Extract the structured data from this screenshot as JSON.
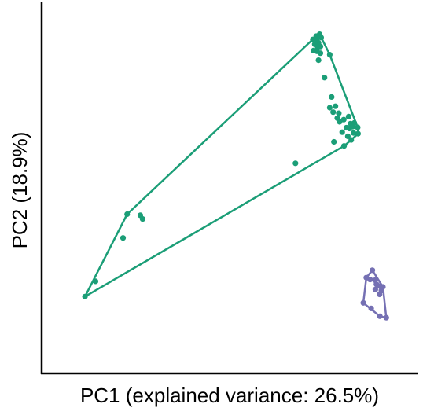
{
  "chart_data": {
    "type": "scatter",
    "title": "",
    "xlabel": "PC1 (explained variance: 26.5%)",
    "ylabel": "PC2 (18.9%)",
    "xlim": [
      0,
      100
    ],
    "ylim": [
      0,
      100
    ],
    "grid": false,
    "legend": "none",
    "axis_ticks": false,
    "series": [
      {
        "color": "#1b9e77",
        "hull": true,
        "points": [
          [
            72.0,
            90.0
          ],
          [
            72.9,
            90.9
          ],
          [
            73.1,
            90.2
          ],
          [
            73.8,
            91.4
          ],
          [
            74.2,
            90.5
          ],
          [
            72.9,
            88.9
          ],
          [
            73.5,
            89.1
          ],
          [
            74.0,
            88.1
          ],
          [
            72.5,
            88.7
          ],
          [
            73.3,
            87.9
          ],
          [
            73.1,
            86.8
          ],
          [
            72.2,
            87.0
          ],
          [
            74.0,
            86.3
          ],
          [
            76.5,
            85.9
          ],
          [
            73.5,
            84.4
          ],
          [
            75.1,
            79.7
          ],
          [
            77.0,
            74.5
          ],
          [
            78.0,
            72.0
          ],
          [
            78.9,
            70.1
          ],
          [
            76.5,
            71.6
          ],
          [
            77.4,
            70.4
          ],
          [
            78.5,
            68.8
          ],
          [
            79.1,
            67.8
          ],
          [
            80.2,
            68.4
          ],
          [
            81.5,
            69.2
          ],
          [
            82.0,
            67.3
          ],
          [
            80.9,
            66.2
          ],
          [
            81.7,
            66.0
          ],
          [
            84.0,
            64.6
          ],
          [
            83.0,
            67.5
          ],
          [
            82.6,
            66.5
          ],
          [
            83.9,
            66.3
          ],
          [
            82.8,
            64.8
          ],
          [
            81.3,
            63.9
          ],
          [
            79.8,
            65.0
          ],
          [
            77.6,
            62.4
          ],
          [
            82.2,
            62.9
          ],
          [
            80.3,
            61.3
          ],
          [
            67.4,
            56.6
          ],
          [
            22.7,
            42.9
          ],
          [
            26.2,
            42.6
          ],
          [
            26.8,
            41.6
          ],
          [
            21.6,
            36.5
          ],
          [
            14.3,
            24.8
          ],
          [
            11.5,
            20.7
          ]
        ]
      },
      {
        "color": "#7570b3",
        "hull": true,
        "points": [
          [
            87.8,
            27.8
          ],
          [
            86.2,
            25.8
          ],
          [
            87.2,
            25.3
          ],
          [
            88.5,
            25.1
          ],
          [
            88.9,
            24.0
          ],
          [
            89.8,
            23.5
          ],
          [
            90.6,
            23.3
          ],
          [
            90.2,
            22.3
          ],
          [
            89.7,
            21.3
          ],
          [
            88.6,
            22.6
          ],
          [
            85.4,
            19.0
          ],
          [
            87.5,
            17.5
          ],
          [
            91.5,
            15.0
          ],
          [
            89.8,
            15.4
          ]
        ]
      }
    ]
  }
}
